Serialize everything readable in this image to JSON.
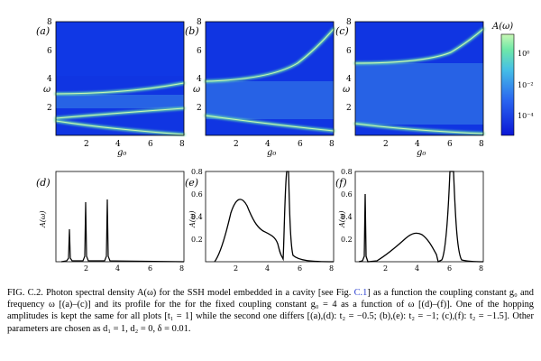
{
  "figure": {
    "colorbar_label": "A(ω)",
    "colorbar_ticks": [
      "10⁰",
      "10⁻²",
      "10⁻⁴"
    ],
    "colorbar_colors": [
      "#0a16d6",
      "#2a66f0",
      "#46bfe6",
      "#6fe8a8",
      "#c8f7b4"
    ],
    "panels_top": [
      {
        "label": "(a)",
        "xlabel": "g₀",
        "ylabel": "ω",
        "gap": [
          2.9,
          3.1
        ],
        "t2": -0.5
      },
      {
        "label": "(b)",
        "xlabel": "g₀",
        "ylabel": "ω",
        "gap": [
          1.5,
          4.1
        ],
        "t2": -1
      },
      {
        "label": "(c)",
        "xlabel": "g₀",
        "ylabel": "ω",
        "gap": [
          0.9,
          5.0
        ],
        "t2": -1.5
      }
    ],
    "panels_bottom": [
      {
        "label": "(d)",
        "xlabel": "ω",
        "ylabel": "A(ω)"
      },
      {
        "label": "(e)",
        "xlabel": "ω",
        "ylabel": "A(ω)"
      },
      {
        "label": "(f)",
        "xlabel": "ω",
        "ylabel": "A(ω)"
      }
    ]
  },
  "caption": {
    "figure_label": "FIG. C.2.",
    "part1": "Photon spectral density A(ω) for the SSH model embedded in a cavity [see Fig.",
    "ref": "C.1",
    "part2": "] as a function the coupling constant g₀ and frequency ω [(a)–(c)] and its profile for the for the fixed coupling constant g₀ = 4 as a function of ω [(d)–(f)]. One of the hopping amplitudes is kept the same for all plots [t₁ = 1] while the second one differs [(a),(d): t₂ = −0.5; (b),(e): t₂ = −1; (c),(f): t₂ = −1.5]. Other parameters are chosen as d₁ = 1, d₂ = 0, δ = 0.01."
  },
  "chart_data": [
    {
      "type": "heatmap",
      "panel": "(a)",
      "xlabel": "g₀",
      "ylabel": "ω",
      "xlim": [
        0,
        8
      ],
      "ylim": [
        0,
        8
      ],
      "xticks": [
        2,
        4,
        6,
        8
      ],
      "yticks": [
        2,
        4,
        6,
        8
      ],
      "colorbar": {
        "label": "A(ω)",
        "scale": "log",
        "ticks": [
          "10⁰",
          "10⁻²",
          "10⁻⁴"
        ]
      },
      "series": [
        {
          "name": "",
          "x": [
            0,
            2,
            4,
            6,
            8
          ],
          "y": [
            0.9,
            0.5,
            0.25,
            0.1,
            0.05
          ]
        },
        {
          "name": "",
          "x": [
            0,
            2,
            4,
            6,
            8
          ],
          "y": [
            1.1,
            1.4,
            1.65,
            1.8,
            1.9
          ]
        },
        {
          "name": "",
          "x": [
            0,
            2,
            4,
            6,
            8
          ],
          "y": [
            3.1,
            3.1,
            3.2,
            3.45,
            3.9
          ]
        }
      ]
    },
    {
      "type": "heatmap",
      "panel": "(b)",
      "xlabel": "g₀",
      "ylabel": "ω",
      "xlim": [
        0,
        8
      ],
      "ylim": [
        0,
        8
      ],
      "xticks": [
        2,
        4,
        6,
        8
      ],
      "yticks": [
        2,
        4,
        6,
        8
      ],
      "series": [
        {
          "name": "",
          "x": [
            0,
            2,
            4,
            6,
            8
          ],
          "y": [
            1.4,
            1.0,
            0.7,
            0.45,
            0.3
          ]
        },
        {
          "name": "",
          "x": [
            0,
            2,
            4,
            6,
            8
          ],
          "y": [
            4.1,
            4.2,
            4.7,
            5.9,
            7.6
          ]
        }
      ]
    },
    {
      "type": "heatmap",
      "panel": "(c)",
      "xlabel": "g₀",
      "ylabel": "ω",
      "xlim": [
        0,
        8
      ],
      "ylim": [
        0,
        8
      ],
      "xticks": [
        2,
        4,
        6,
        8
      ],
      "yticks": [
        2,
        4,
        6,
        8
      ],
      "series": [
        {
          "name": "",
          "x": [
            0,
            2,
            4,
            6,
            8
          ],
          "y": [
            0.9,
            0.7,
            0.5,
            0.35,
            0.25
          ]
        },
        {
          "name": "",
          "x": [
            0,
            2,
            4,
            6,
            8
          ],
          "y": [
            5.0,
            5.05,
            5.4,
            6.3,
            7.6
          ]
        }
      ]
    },
    {
      "type": "line",
      "panel": "(d)",
      "xlabel": "ω",
      "ylabel": "A(ω)",
      "xlim": [
        0,
        8
      ],
      "ylim": [
        0,
        8
      ],
      "xticks": [
        2,
        4,
        6,
        8
      ],
      "yticks": [
        2,
        4,
        6,
        8
      ],
      "peaks": [
        {
          "x": 0.3,
          "y": 3.0
        },
        {
          "x": 1.7,
          "y": 5.3
        },
        {
          "x": 3.2,
          "y": 5.6
        }
      ]
    },
    {
      "type": "line",
      "panel": "(e)",
      "xlabel": "ω",
      "ylabel": "A(ω)",
      "xlim": [
        0,
        8
      ],
      "ylim": [
        0,
        0.8
      ],
      "xticks": [
        2,
        4,
        6,
        8
      ],
      "yticks": [
        0.2,
        0.4,
        0.6,
        0.8
      ],
      "x": [
        0.6,
        1.0,
        1.5,
        1.8,
        2.0,
        2.3,
        2.6,
        3.0,
        3.5,
        3.9,
        4.1,
        4.3,
        4.45,
        4.6,
        4.8,
        5.5,
        6.5,
        8.0
      ],
      "y": [
        0.0,
        0.08,
        0.3,
        0.48,
        0.53,
        0.45,
        0.34,
        0.28,
        0.23,
        0.18,
        0.05,
        0.35,
        0.8,
        0.35,
        0.1,
        0.03,
        0.01,
        0.0
      ]
    },
    {
      "type": "line",
      "panel": "(f)",
      "xlabel": "ω",
      "ylabel": "A(ω)",
      "xlim": [
        0,
        8
      ],
      "ylim": [
        0,
        0.8
      ],
      "xticks": [
        2,
        4,
        6,
        8
      ],
      "yticks": [
        0.2,
        0.4,
        0.6,
        0.8
      ],
      "x": [
        0.3,
        0.55,
        0.7,
        0.9,
        1.5,
        2.2,
        3.0,
        3.4,
        3.8,
        4.5,
        4.8,
        5.2,
        5.7,
        5.9,
        6.1,
        6.5,
        8.0
      ],
      "y": [
        0.0,
        0.05,
        0.6,
        0.0,
        0.03,
        0.12,
        0.22,
        0.26,
        0.24,
        0.15,
        0.08,
        0.0,
        0.2,
        0.8,
        0.2,
        0.02,
        0.0
      ]
    }
  ]
}
